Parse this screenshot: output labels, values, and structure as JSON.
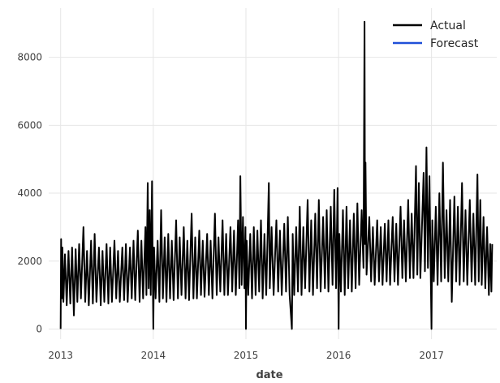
{
  "chart_data": {
    "type": "line",
    "title": "",
    "xlabel": "date",
    "ylabel": "",
    "x_axis": "date",
    "xlim": [
      "2012-11-15",
      "2017-09-15"
    ],
    "ylim": [
      -300,
      9450
    ],
    "xticks": [
      {
        "date": "2013-01-01",
        "label": "2013"
      },
      {
        "date": "2014-01-01",
        "label": "2014"
      },
      {
        "date": "2015-01-01",
        "label": "2015"
      },
      {
        "date": "2016-01-01",
        "label": "2016"
      },
      {
        "date": "2017-01-01",
        "label": "2017"
      }
    ],
    "yticks": [
      {
        "value": 0,
        "label": "0"
      },
      {
        "value": 2000,
        "label": "2000"
      },
      {
        "value": 4000,
        "label": "4000"
      },
      {
        "value": 6000,
        "label": "6000"
      },
      {
        "value": 8000,
        "label": "8000"
      }
    ],
    "grid": true,
    "legend": {
      "position": "top-right"
    },
    "series": [
      {
        "name": "Actual",
        "color": "#000000",
        "points": [
          [
            "2013-01-01",
            0
          ],
          [
            "2013-01-03",
            2650
          ],
          [
            "2013-01-05",
            900
          ],
          [
            "2013-01-08",
            2400
          ],
          [
            "2013-01-12",
            800
          ],
          [
            "2013-01-18",
            2200
          ],
          [
            "2013-01-25",
            700
          ],
          [
            "2013-02-01",
            2300
          ],
          [
            "2013-02-08",
            750
          ],
          [
            "2013-02-15",
            2400
          ],
          [
            "2013-02-22",
            400
          ],
          [
            "2013-03-01",
            2350
          ],
          [
            "2013-03-08",
            800
          ],
          [
            "2013-03-15",
            2500
          ],
          [
            "2013-03-22",
            900
          ],
          [
            "2013-04-01",
            3000
          ],
          [
            "2013-04-08",
            800
          ],
          [
            "2013-04-15",
            2300
          ],
          [
            "2013-04-22",
            700
          ],
          [
            "2013-05-01",
            2600
          ],
          [
            "2013-05-08",
            750
          ],
          [
            "2013-05-15",
            2800
          ],
          [
            "2013-05-22",
            800
          ],
          [
            "2013-06-01",
            2400
          ],
          [
            "2013-06-08",
            700
          ],
          [
            "2013-06-15",
            2300
          ],
          [
            "2013-06-22",
            800
          ],
          [
            "2013-07-01",
            2500
          ],
          [
            "2013-07-08",
            750
          ],
          [
            "2013-07-15",
            2400
          ],
          [
            "2013-07-22",
            800
          ],
          [
            "2013-08-01",
            2600
          ],
          [
            "2013-08-08",
            900
          ],
          [
            "2013-08-15",
            2300
          ],
          [
            "2013-08-22",
            800
          ],
          [
            "2013-09-01",
            2400
          ],
          [
            "2013-09-08",
            850
          ],
          [
            "2013-09-15",
            2500
          ],
          [
            "2013-09-22",
            800
          ],
          [
            "2013-10-01",
            2400
          ],
          [
            "2013-10-08",
            900
          ],
          [
            "2013-10-15",
            2600
          ],
          [
            "2013-10-22",
            850
          ],
          [
            "2013-11-01",
            2900
          ],
          [
            "2013-11-08",
            800
          ],
          [
            "2013-11-15",
            2600
          ],
          [
            "2013-11-22",
            900
          ],
          [
            "2013-12-01",
            3000
          ],
          [
            "2013-12-05",
            1000
          ],
          [
            "2013-12-10",
            4300
          ],
          [
            "2013-12-14",
            1200
          ],
          [
            "2013-12-18",
            3500
          ],
          [
            "2013-12-22",
            1000
          ],
          [
            "2013-12-27",
            4350
          ],
          [
            "2013-12-30",
            1500
          ],
          [
            "2014-01-01",
            0
          ],
          [
            "2014-01-04",
            2400
          ],
          [
            "2014-01-10",
            900
          ],
          [
            "2014-01-18",
            2600
          ],
          [
            "2014-01-25",
            800
          ],
          [
            "2014-02-01",
            3500
          ],
          [
            "2014-02-08",
            900
          ],
          [
            "2014-02-15",
            2700
          ],
          [
            "2014-02-22",
            800
          ],
          [
            "2014-03-01",
            2800
          ],
          [
            "2014-03-08",
            900
          ],
          [
            "2014-03-15",
            2600
          ],
          [
            "2014-03-22",
            850
          ],
          [
            "2014-04-01",
            3200
          ],
          [
            "2014-04-08",
            900
          ],
          [
            "2014-04-15",
            2700
          ],
          [
            "2014-04-22",
            1000
          ],
          [
            "2014-05-01",
            3000
          ],
          [
            "2014-05-08",
            900
          ],
          [
            "2014-05-15",
            2600
          ],
          [
            "2014-05-22",
            850
          ],
          [
            "2014-06-01",
            3400
          ],
          [
            "2014-06-08",
            900
          ],
          [
            "2014-06-15",
            2700
          ],
          [
            "2014-06-22",
            900
          ],
          [
            "2014-07-01",
            2900
          ],
          [
            "2014-07-08",
            1000
          ],
          [
            "2014-07-15",
            2600
          ],
          [
            "2014-07-22",
            950
          ],
          [
            "2014-08-01",
            2800
          ],
          [
            "2014-08-08",
            1000
          ],
          [
            "2014-08-15",
            2600
          ],
          [
            "2014-08-22",
            900
          ],
          [
            "2014-09-01",
            3400
          ],
          [
            "2014-09-08",
            1000
          ],
          [
            "2014-09-15",
            2700
          ],
          [
            "2014-09-22",
            1100
          ],
          [
            "2014-10-01",
            3200
          ],
          [
            "2014-10-08",
            1000
          ],
          [
            "2014-10-15",
            2800
          ],
          [
            "2014-10-22",
            1000
          ],
          [
            "2014-11-01",
            3000
          ],
          [
            "2014-11-08",
            1100
          ],
          [
            "2014-11-15",
            2900
          ],
          [
            "2014-11-22",
            1000
          ],
          [
            "2014-12-01",
            3200
          ],
          [
            "2014-12-06",
            1200
          ],
          [
            "2014-12-10",
            4500
          ],
          [
            "2014-12-15",
            1300
          ],
          [
            "2014-12-20",
            3300
          ],
          [
            "2014-12-26",
            1200
          ],
          [
            "2014-12-30",
            3000
          ],
          [
            "2015-01-01",
            0
          ],
          [
            "2015-01-04",
            2600
          ],
          [
            "2015-01-10",
            1000
          ],
          [
            "2015-01-18",
            2800
          ],
          [
            "2015-01-25",
            900
          ],
          [
            "2015-02-01",
            3000
          ],
          [
            "2015-02-08",
            1000
          ],
          [
            "2015-02-15",
            2900
          ],
          [
            "2015-02-22",
            1100
          ],
          [
            "2015-03-01",
            3200
          ],
          [
            "2015-03-08",
            900
          ],
          [
            "2015-03-15",
            2800
          ],
          [
            "2015-03-22",
            1000
          ],
          [
            "2015-04-01",
            4300
          ],
          [
            "2015-04-05",
            1200
          ],
          [
            "2015-04-12",
            3000
          ],
          [
            "2015-04-20",
            1000
          ],
          [
            "2015-05-01",
            3200
          ],
          [
            "2015-05-08",
            1100
          ],
          [
            "2015-05-15",
            2900
          ],
          [
            "2015-05-22",
            1000
          ],
          [
            "2015-06-01",
            3100
          ],
          [
            "2015-06-08",
            1100
          ],
          [
            "2015-06-15",
            3300
          ],
          [
            "2015-06-22",
            1000
          ],
          [
            "2015-07-01",
            0
          ],
          [
            "2015-07-04",
            2800
          ],
          [
            "2015-07-10",
            1000
          ],
          [
            "2015-07-18",
            3000
          ],
          [
            "2015-07-25",
            1100
          ],
          [
            "2015-08-01",
            3600
          ],
          [
            "2015-08-08",
            1000
          ],
          [
            "2015-08-15",
            3000
          ],
          [
            "2015-08-22",
            1200
          ],
          [
            "2015-09-01",
            3800
          ],
          [
            "2015-09-08",
            1100
          ],
          [
            "2015-09-15",
            3200
          ],
          [
            "2015-09-22",
            1000
          ],
          [
            "2015-10-01",
            3400
          ],
          [
            "2015-10-08",
            1200
          ],
          [
            "2015-10-15",
            3800
          ],
          [
            "2015-10-22",
            1100
          ],
          [
            "2015-11-01",
            3300
          ],
          [
            "2015-11-08",
            1200
          ],
          [
            "2015-11-15",
            3500
          ],
          [
            "2015-11-22",
            1100
          ],
          [
            "2015-12-01",
            3600
          ],
          [
            "2015-12-08",
            1300
          ],
          [
            "2015-12-15",
            4100
          ],
          [
            "2015-12-22",
            1200
          ],
          [
            "2015-12-28",
            4150
          ],
          [
            "2016-01-01",
            0
          ],
          [
            "2016-01-04",
            2800
          ],
          [
            "2016-01-10",
            1100
          ],
          [
            "2016-01-18",
            3500
          ],
          [
            "2016-01-25",
            1000
          ],
          [
            "2016-02-01",
            3600
          ],
          [
            "2016-02-08",
            1200
          ],
          [
            "2016-02-15",
            3200
          ],
          [
            "2016-02-22",
            1100
          ],
          [
            "2016-03-01",
            3400
          ],
          [
            "2016-03-08",
            1200
          ],
          [
            "2016-03-15",
            3700
          ],
          [
            "2016-03-22",
            1300
          ],
          [
            "2016-04-01",
            3500
          ],
          [
            "2016-04-08",
            1800
          ],
          [
            "2016-04-12",
            9050
          ],
          [
            "2016-04-14",
            2500
          ],
          [
            "2016-04-16",
            4900
          ],
          [
            "2016-04-20",
            1600
          ],
          [
            "2016-05-01",
            3300
          ],
          [
            "2016-05-08",
            1400
          ],
          [
            "2016-05-15",
            3000
          ],
          [
            "2016-05-22",
            1300
          ],
          [
            "2016-06-01",
            3200
          ],
          [
            "2016-06-08",
            1400
          ],
          [
            "2016-06-15",
            3000
          ],
          [
            "2016-06-22",
            1300
          ],
          [
            "2016-07-01",
            3100
          ],
          [
            "2016-07-08",
            1400
          ],
          [
            "2016-07-15",
            3200
          ],
          [
            "2016-07-22",
            1300
          ],
          [
            "2016-08-01",
            3300
          ],
          [
            "2016-08-08",
            1400
          ],
          [
            "2016-08-15",
            3100
          ],
          [
            "2016-08-22",
            1300
          ],
          [
            "2016-09-01",
            3600
          ],
          [
            "2016-09-08",
            1500
          ],
          [
            "2016-09-15",
            3200
          ],
          [
            "2016-09-22",
            1400
          ],
          [
            "2016-10-01",
            3800
          ],
          [
            "2016-10-08",
            1500
          ],
          [
            "2016-10-15",
            3400
          ],
          [
            "2016-10-22",
            1500
          ],
          [
            "2016-11-01",
            4800
          ],
          [
            "2016-11-06",
            1600
          ],
          [
            "2016-11-12",
            4300
          ],
          [
            "2016-11-18",
            1500
          ],
          [
            "2016-12-01",
            4600
          ],
          [
            "2016-12-06",
            1700
          ],
          [
            "2016-12-12",
            5350
          ],
          [
            "2016-12-18",
            1800
          ],
          [
            "2016-12-24",
            4500
          ],
          [
            "2016-12-29",
            1600
          ],
          [
            "2017-01-01",
            0
          ],
          [
            "2017-01-04",
            3200
          ],
          [
            "2017-01-10",
            1400
          ],
          [
            "2017-01-18",
            3600
          ],
          [
            "2017-01-25",
            1300
          ],
          [
            "2017-02-01",
            4000
          ],
          [
            "2017-02-08",
            1400
          ],
          [
            "2017-02-15",
            4900
          ],
          [
            "2017-02-22",
            1500
          ],
          [
            "2017-03-01",
            3500
          ],
          [
            "2017-03-08",
            1400
          ],
          [
            "2017-03-15",
            3800
          ],
          [
            "2017-03-22",
            800
          ],
          [
            "2017-04-01",
            3900
          ],
          [
            "2017-04-08",
            1400
          ],
          [
            "2017-04-15",
            3600
          ],
          [
            "2017-04-22",
            1300
          ],
          [
            "2017-05-01",
            4300
          ],
          [
            "2017-05-08",
            1400
          ],
          [
            "2017-05-15",
            3500
          ],
          [
            "2017-05-22",
            1300
          ],
          [
            "2017-06-01",
            3800
          ],
          [
            "2017-06-08",
            1400
          ],
          [
            "2017-06-15",
            3400
          ],
          [
            "2017-06-22",
            1300
          ],
          [
            "2017-07-01",
            4550
          ],
          [
            "2017-07-06",
            1400
          ],
          [
            "2017-07-12",
            3800
          ],
          [
            "2017-07-18",
            1300
          ],
          [
            "2017-07-25",
            3300
          ],
          [
            "2017-08-01",
            1200
          ],
          [
            "2017-08-08",
            3000
          ],
          [
            "2017-08-15",
            1000
          ],
          [
            "2017-08-20",
            2500
          ],
          [
            "2017-08-25",
            1100
          ],
          [
            "2017-08-28",
            2500
          ]
        ]
      },
      {
        "name": "Forecast",
        "color": "#1f4fd8",
        "points": []
      }
    ]
  }
}
